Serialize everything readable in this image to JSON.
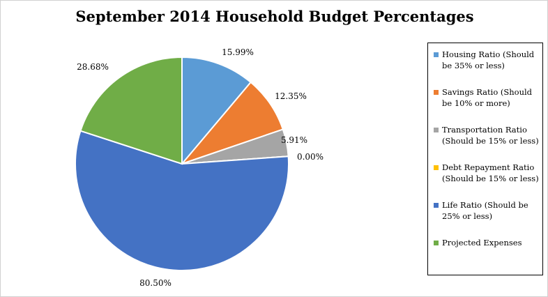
{
  "chart_data": {
    "type": "pie",
    "title": "September 2014 Household Budget Percentages",
    "categories": [
      "Housing Ratio (Should be 35% or less)",
      "Savings Ratio (Should be 10% or more)",
      "Transportation Ratio (Should be 15% or less)",
      "Debt Repayment Ratio (Should be 15% or less)",
      "Life Ratio (Should be 25% or less)",
      "Projected Expenses"
    ],
    "values": [
      15.99,
      12.35,
      5.91,
      0.0,
      80.5,
      28.68
    ],
    "data_labels": [
      "15.99%",
      "12.35%",
      "5.91%",
      "0.00%",
      "80.50%",
      "28.68%"
    ],
    "colors": [
      "#5b9bd5",
      "#ed7d31",
      "#a5a5a5",
      "#ffc000",
      "#4472c4",
      "#70ad47"
    ],
    "legend_position": "right",
    "start_angle": "12 o'clock, clockwise"
  }
}
